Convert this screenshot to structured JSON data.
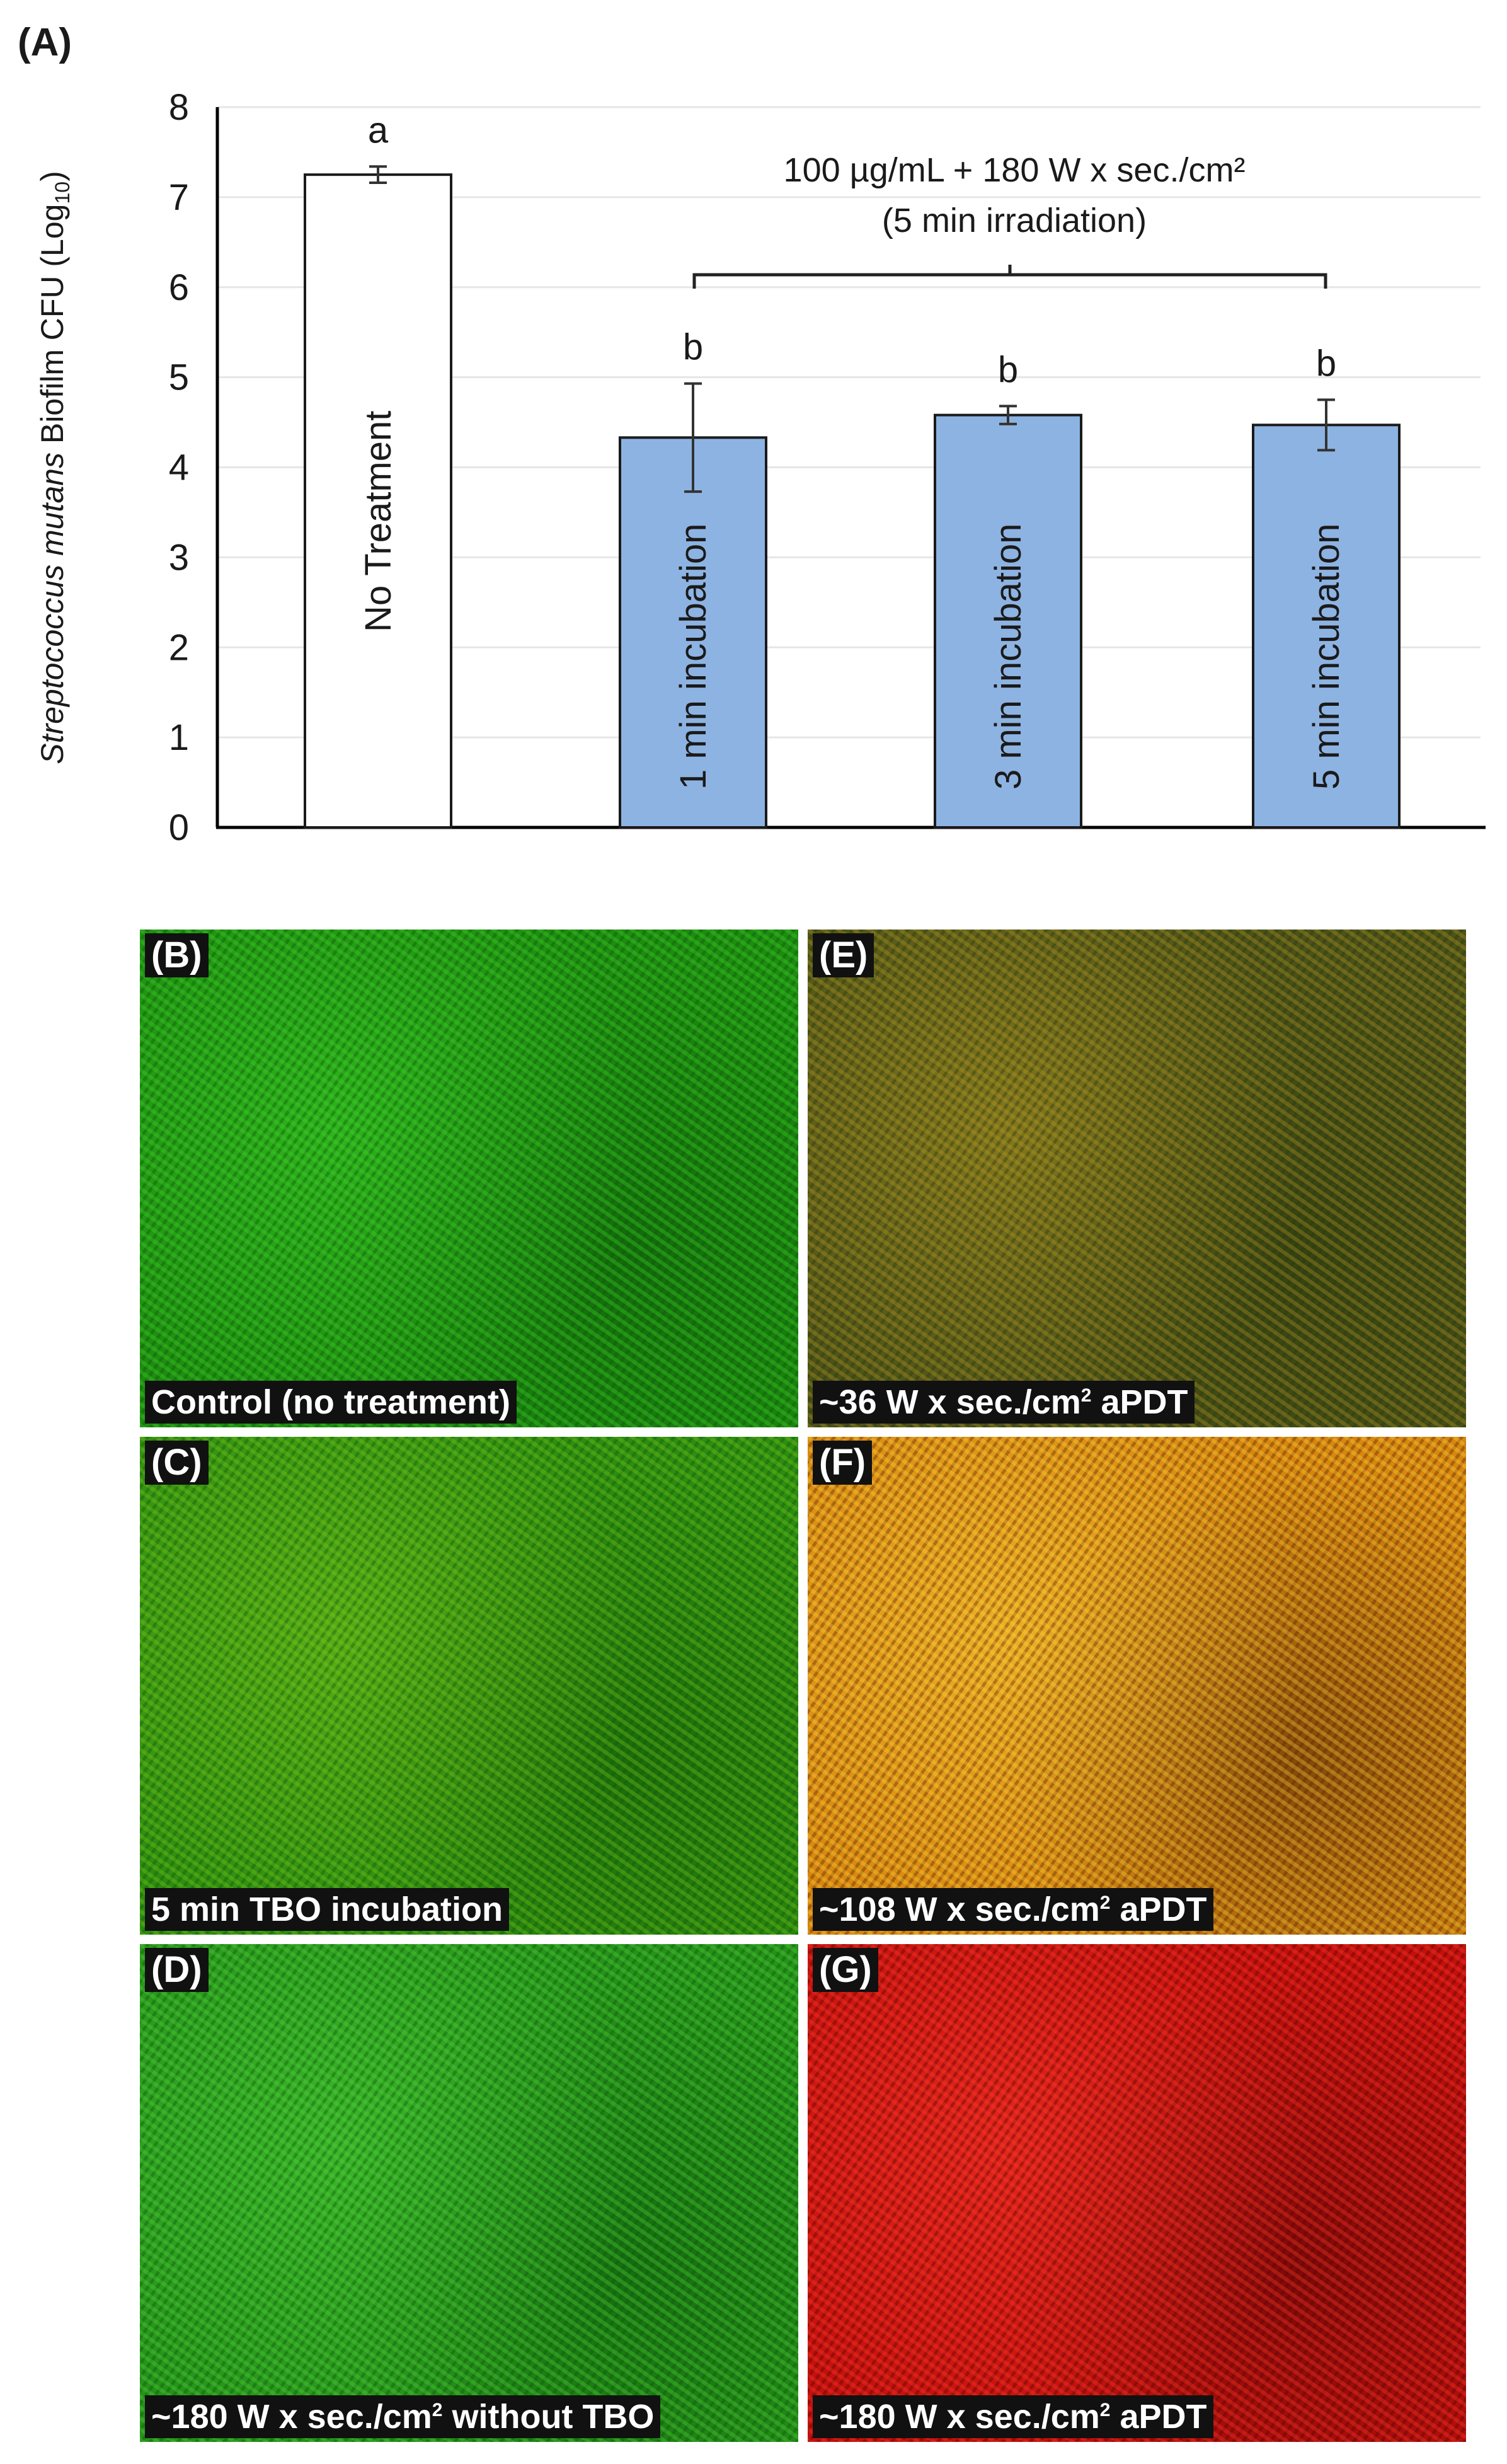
{
  "chart_data": {
    "type": "bar",
    "panel_label": "(A)",
    "ylabel_italic": "Streptococcus mutans",
    "ylabel_rest": " Biofilm CFU (Log",
    "ylabel_sub": "10",
    "ylabel_close": ")",
    "ylim": [
      0,
      8
    ],
    "yticks": [
      0,
      1,
      2,
      3,
      4,
      5,
      6,
      7,
      8
    ],
    "grid": true,
    "categories": [
      "No Treatment",
      "1 min incubation",
      "3 min incubation",
      "5 min incubation"
    ],
    "values": [
      7.25,
      4.33,
      4.58,
      4.47
    ],
    "errors": [
      0.09,
      0.6,
      0.1,
      0.28
    ],
    "letters": [
      "a",
      "b",
      "b",
      "b"
    ],
    "bar_colors": [
      "#ffffff",
      "#8db3e2",
      "#8db3e2",
      "#8db3e2"
    ],
    "bracket_label_line1": "100 µg/mL + 180 W x sec./cm²",
    "bracket_label_line2": "(5 min irradiation)"
  },
  "panels": [
    {
      "letter": "(B)",
      "caption": "Control (no treatment)",
      "colors": [
        "#1e8c10",
        "#3fd62a",
        "#0d5a08"
      ]
    },
    {
      "letter": "(E)",
      "caption_pre": "~36 W x sec./cm",
      "caption_sup": "2",
      "caption_post": " aPDT",
      "colors": [
        "#4c5218",
        "#b79a22",
        "#2a3a0e"
      ]
    },
    {
      "letter": "(C)",
      "caption": "5 min TBO incubation",
      "colors": [
        "#2c8e10",
        "#7ec81c",
        "#125a08"
      ]
    },
    {
      "letter": "(F)",
      "caption_pre": "~108 W x sec./cm",
      "caption_sup": "2",
      "caption_post": " aPDT",
      "colors": [
        "#d8860e",
        "#ffd23a",
        "#5a2a06"
      ]
    },
    {
      "letter": "(D)",
      "caption_pre": "~180 W x sec./cm",
      "caption_sup": "2",
      "caption_post": " without TBO",
      "colors": [
        "#26921a",
        "#4fd63a",
        "#0e5a0a"
      ]
    },
    {
      "letter": "(G)",
      "caption_pre": "~180 W x sec./cm",
      "caption_sup": "2",
      "caption_post": " aPDT",
      "colors": [
        "#c4100c",
        "#ff3a2a",
        "#5a0606"
      ]
    }
  ]
}
